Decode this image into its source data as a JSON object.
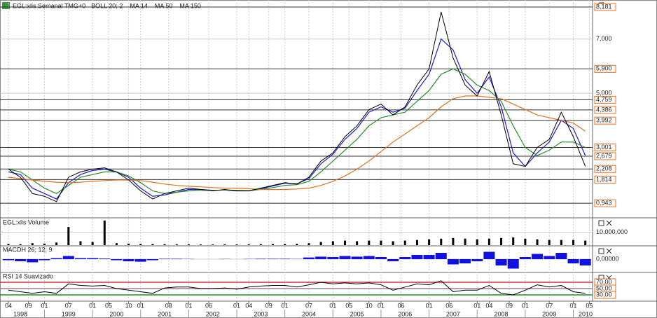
{
  "chart_data": [
    {
      "type": "line",
      "title": "EGL:xlis Semanal TMG+0",
      "color": "#000000",
      "indicators": [
        {
          "name": "BOLL 20; 2",
          "color": "#e03030"
        }
      ],
      "x": [
        "1998-04",
        "1998-07",
        "1998-10",
        "1999-01",
        "1999-04",
        "1999-07",
        "1999-10",
        "2000-01",
        "2000-04",
        "2000-07",
        "2000-10",
        "2001-01",
        "2001-04",
        "2001-07",
        "2001-10",
        "2002-01",
        "2002-04",
        "2002-07",
        "2002-10",
        "2003-01",
        "2003-04",
        "2003-07",
        "2003-10",
        "2004-01",
        "2004-04",
        "2004-07",
        "2004-10",
        "2005-01",
        "2005-04",
        "2005-07",
        "2005-10",
        "2006-01",
        "2006-04",
        "2006-07",
        "2006-10",
        "2007-01",
        "2007-04",
        "2007-07",
        "2007-10",
        "2008-01",
        "2008-04",
        "2008-07",
        "2008-10",
        "2009-01",
        "2009-04",
        "2009-07",
        "2009-10",
        "2010-01",
        "2010-04"
      ],
      "values": [
        2.2,
        1.9,
        1.3,
        1.2,
        1.0,
        1.9,
        2.1,
        2.2,
        2.25,
        2.1,
        1.8,
        1.4,
        1.1,
        1.3,
        1.4,
        1.5,
        1.45,
        1.4,
        1.45,
        1.4,
        1.4,
        1.5,
        1.6,
        1.7,
        1.65,
        1.9,
        2.5,
        2.8,
        3.4,
        3.8,
        4.4,
        4.6,
        4.2,
        4.5,
        5.3,
        5.9,
        8.0,
        6.3,
        5.3,
        4.9,
        5.8,
        4.2,
        2.4,
        2.3,
        3.0,
        3.3,
        4.3,
        3.4,
        2.3
      ],
      "series": [
        {
          "name": "MA 14",
          "color": "#1a1ad0",
          "values": [
            2.1,
            2.0,
            1.5,
            1.3,
            1.1,
            1.7,
            2.0,
            2.15,
            2.2,
            2.1,
            1.9,
            1.5,
            1.2,
            1.25,
            1.35,
            1.45,
            1.45,
            1.42,
            1.43,
            1.4,
            1.4,
            1.48,
            1.58,
            1.68,
            1.66,
            1.85,
            2.4,
            2.75,
            3.3,
            3.7,
            4.3,
            4.5,
            4.3,
            4.45,
            5.1,
            5.7,
            7.0,
            6.6,
            5.5,
            5.0,
            5.6,
            4.5,
            2.8,
            2.3,
            2.8,
            3.2,
            4.0,
            3.7,
            2.7
          ]
        },
        {
          "name": "MA 50",
          "color": "#2a8a2a",
          "values": [
            2.2,
            2.1,
            1.8,
            1.5,
            1.3,
            1.6,
            1.9,
            2.0,
            2.1,
            2.1,
            1.95,
            1.7,
            1.4,
            1.3,
            1.35,
            1.4,
            1.42,
            1.42,
            1.43,
            1.42,
            1.41,
            1.45,
            1.52,
            1.6,
            1.63,
            1.75,
            2.1,
            2.5,
            2.9,
            3.3,
            3.8,
            4.1,
            4.2,
            4.3,
            4.7,
            5.1,
            5.7,
            5.9,
            5.7,
            5.3,
            5.1,
            4.7,
            3.8,
            3.0,
            2.7,
            2.9,
            3.2,
            3.2,
            3.0
          ]
        },
        {
          "name": "MA 150",
          "color": "#e07020",
          "values": [
            1.9,
            1.85,
            1.8,
            1.75,
            1.72,
            1.7,
            1.72,
            1.75,
            1.78,
            1.8,
            1.8,
            1.78,
            1.72,
            1.65,
            1.6,
            1.57,
            1.55,
            1.52,
            1.5,
            1.5,
            1.48,
            1.45,
            1.45,
            1.45,
            1.47,
            1.5,
            1.6,
            1.75,
            1.95,
            2.2,
            2.5,
            2.85,
            3.2,
            3.5,
            3.8,
            4.1,
            4.5,
            4.8,
            4.9,
            4.9,
            4.85,
            4.8,
            4.6,
            4.4,
            4.2,
            4.1,
            4.0,
            3.9,
            3.6
          ]
        }
      ],
      "ylim": [
        0.43,
        8.44
      ],
      "yticks": [
        {
          "value": 8.181,
          "label": "8,181"
        },
        {
          "value": 7.0,
          "label": "7,000"
        },
        {
          "value": 5.9,
          "label": "5,900"
        },
        {
          "value": 5.0,
          "label": "5,000"
        },
        {
          "value": 4.759,
          "label": "4,759"
        },
        {
          "value": 4.386,
          "label": "4,386"
        },
        {
          "value": 3.992,
          "label": "3,992"
        },
        {
          "value": 3.001,
          "label": "3,001"
        },
        {
          "value": 2.679,
          "label": "2,679"
        },
        {
          "value": 2.208,
          "label": "2,208"
        },
        {
          "value": 1.814,
          "label": "1,814"
        },
        {
          "value": 0.943,
          "label": "0,943"
        }
      ]
    },
    {
      "type": "bar",
      "title": "EGL:xlis Volume",
      "color": "#000000",
      "values": [
        1000000,
        800000,
        1500000,
        1200000,
        2000000,
        14000000,
        3000000,
        2500000,
        19000000,
        1500000,
        1200000,
        1000000,
        900000,
        800000,
        700000,
        700000,
        600000,
        600000,
        700000,
        600000,
        700000,
        800000,
        900000,
        1000000,
        1100000,
        1500000,
        2500000,
        3000000,
        3500000,
        3000000,
        3500000,
        3500000,
        3000000,
        3500000,
        4000000,
        4500000,
        5000000,
        5500000,
        5000000,
        4500000,
        5000000,
        5500000,
        6000000,
        5000000,
        4500000,
        4000000,
        4000000,
        4000000,
        3500000
      ],
      "ylim": [
        0,
        20000000
      ],
      "yticks": [
        {
          "value": 10000000,
          "label": "10,000,000"
        }
      ]
    },
    {
      "type": "area",
      "title": "MACDH 26; 12; 9",
      "color": "#1010e0",
      "values": [
        -0.05,
        -0.1,
        -0.15,
        -0.05,
        0.05,
        0.15,
        0.05,
        0.05,
        0.03,
        -0.05,
        -0.1,
        -0.12,
        -0.05,
        0.02,
        0.02,
        0.01,
        0,
        0,
        0.01,
        0,
        0.01,
        0.02,
        0.02,
        0.02,
        0.01,
        0.08,
        0.12,
        0.1,
        0.15,
        0.12,
        0.15,
        0.1,
        -0.1,
        0.1,
        0.2,
        0.2,
        0.3,
        -0.25,
        -0.2,
        -0.1,
        0.35,
        -0.3,
        -0.45,
        0.1,
        0.25,
        0.15,
        0.3,
        -0.2,
        -0.3
      ],
      "ylim": [
        -0.6,
        0.6
      ],
      "yticks": [
        {
          "value": 0,
          "label": "0,00000"
        }
      ]
    },
    {
      "type": "line",
      "title": "RSI 14 Suavizado",
      "color": "#000000",
      "values": [
        45,
        40,
        35,
        40,
        35,
        65,
        60,
        58,
        60,
        50,
        45,
        40,
        35,
        52,
        55,
        55,
        50,
        50,
        52,
        48,
        55,
        58,
        60,
        60,
        55,
        62,
        70,
        65,
        68,
        65,
        68,
        62,
        45,
        55,
        65,
        62,
        75,
        40,
        45,
        45,
        60,
        35,
        30,
        45,
        62,
        55,
        60,
        40,
        35
      ],
      "ylim": [
        0,
        100
      ],
      "yticks": [
        {
          "value": 70,
          "label": "70,00"
        },
        {
          "value": 50,
          "label": "50,00"
        },
        {
          "value": 30,
          "label": "30,00"
        }
      ],
      "xticks": [
        {
          "value": "1998-04",
          "label": "04"
        },
        {
          "value": "1998-09",
          "label": "09"
        },
        {
          "value": "1999-01",
          "label": "01"
        },
        {
          "value": "1999-07",
          "label": "07"
        },
        {
          "value": "2000-01",
          "label": "01"
        },
        {
          "value": "2000-05",
          "label": "05"
        },
        {
          "value": "2000-10",
          "label": "10"
        },
        {
          "value": "2001-01",
          "label": "01"
        },
        {
          "value": "2001-08",
          "label": "08"
        },
        {
          "value": "2002-01",
          "label": "01"
        },
        {
          "value": "2002-06",
          "label": "06"
        },
        {
          "value": "2003-01",
          "label": "01"
        },
        {
          "value": "2003-04",
          "label": "04"
        },
        {
          "value": "2003-09",
          "label": "09"
        },
        {
          "value": "2004-01",
          "label": "01"
        },
        {
          "value": "2004-07",
          "label": "07"
        },
        {
          "value": "2005-01",
          "label": "01"
        },
        {
          "value": "2005-05",
          "label": "05"
        },
        {
          "value": "2005-10",
          "label": "10"
        },
        {
          "value": "2006-01",
          "label": "01"
        },
        {
          "value": "2006-06",
          "label": "06"
        },
        {
          "value": "2007-01",
          "label": "01"
        },
        {
          "value": "2007-06",
          "label": "06"
        },
        {
          "value": "2008-01",
          "label": "01"
        },
        {
          "value": "2008-04",
          "label": "04"
        },
        {
          "value": "2008-09",
          "label": "09"
        },
        {
          "value": "2009-01",
          "label": "01"
        },
        {
          "value": "2009-07",
          "label": "07"
        },
        {
          "value": "2010-01",
          "label": "01"
        },
        {
          "value": "2010-05",
          "label": "05"
        }
      ],
      "years": [
        "1998",
        "1999",
        "2000",
        "2001",
        "2002",
        "2003",
        "2004",
        "2005",
        "2006",
        "2007",
        "2008",
        "2009",
        "2010"
      ]
    }
  ]
}
